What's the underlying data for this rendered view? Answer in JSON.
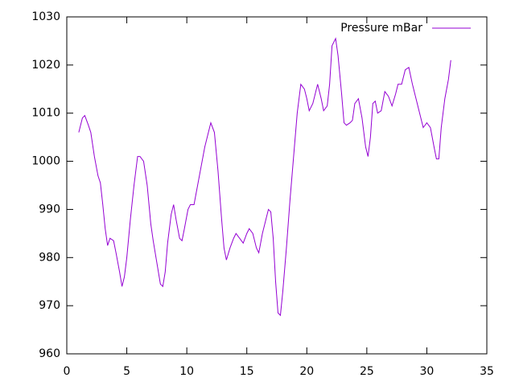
{
  "chart_data": {
    "type": "line",
    "xlim": [
      0,
      35
    ],
    "xticks": [
      0,
      5,
      10,
      15,
      20,
      25,
      30,
      35
    ],
    "ylim": [
      960,
      1030
    ],
    "yticks": [
      960,
      970,
      980,
      990,
      1000,
      1010,
      1020,
      1030
    ],
    "legend": "top-right",
    "x": [
      1.0,
      1.3,
      1.5,
      1.8,
      2.0,
      2.3,
      2.6,
      2.8,
      3.0,
      3.2,
      3.4,
      3.6,
      3.9,
      4.1,
      4.4,
      4.6,
      4.8,
      5.0,
      5.3,
      5.6,
      5.9,
      6.1,
      6.4,
      6.7,
      7.0,
      7.2,
      7.5,
      7.8,
      8.0,
      8.2,
      8.4,
      8.7,
      8.9,
      9.1,
      9.4,
      9.6,
      9.8,
      10.1,
      10.3,
      10.6,
      10.9,
      11.2,
      11.5,
      11.8,
      12.0,
      12.3,
      12.6,
      12.9,
      13.1,
      13.3,
      13.6,
      13.9,
      14.1,
      14.4,
      14.7,
      15.0,
      15.2,
      15.5,
      15.8,
      16.0,
      16.3,
      16.6,
      16.8,
      17.0,
      17.2,
      17.4,
      17.6,
      17.8,
      18.0,
      18.3,
      18.6,
      18.9,
      19.2,
      19.5,
      19.8,
      20.0,
      20.2,
      20.5,
      20.9,
      21.2,
      21.4,
      21.7,
      21.9,
      22.1,
      22.4,
      22.6,
      22.9,
      23.1,
      23.3,
      23.6,
      23.8,
      24.0,
      24.3,
      24.6,
      24.9,
      25.1,
      25.3,
      25.5,
      25.7,
      25.9,
      26.2,
      26.5,
      26.8,
      27.1,
      27.4,
      27.6,
      27.9,
      28.2,
      28.5,
      28.8,
      29.1,
      29.4,
      29.7,
      30.0,
      30.3,
      30.6,
      30.8,
      31.0,
      31.2,
      31.5,
      31.8,
      32.0
    ],
    "series": [
      {
        "name": "Pressure mBar",
        "color": "#9400d3",
        "values": [
          1006,
          1009,
          1009.5,
          1007.5,
          1006,
          1001,
          997,
          995.5,
          991,
          986,
          982.5,
          984,
          983.5,
          981,
          977,
          974,
          976,
          980,
          988,
          995,
          1001,
          1001,
          1000,
          995,
          987,
          983.5,
          979,
          974.5,
          974,
          977,
          983,
          989,
          991,
          988,
          984,
          983.5,
          986,
          990,
          991,
          991,
          995,
          999,
          1003,
          1006,
          1008,
          1006,
          998,
          988,
          982,
          979.5,
          982,
          984,
          985,
          984,
          983,
          985,
          986,
          985,
          982,
          981,
          985,
          988,
          990,
          989.5,
          984,
          975,
          968.5,
          968,
          973,
          982,
          992,
          1001,
          1010,
          1016,
          1015,
          1013,
          1010.5,
          1012,
          1016,
          1013,
          1010.5,
          1011.5,
          1016,
          1024,
          1025.5,
          1022,
          1014,
          1008,
          1007.5,
          1008,
          1008.5,
          1012,
          1013,
          1009,
          1003,
          1001,
          1005,
          1012,
          1012.5,
          1010,
          1010.5,
          1014.5,
          1013.5,
          1011.5,
          1014,
          1016,
          1016,
          1019,
          1019.5,
          1016,
          1013,
          1010,
          1007,
          1008,
          1007,
          1003,
          1000.5,
          1000.5,
          1007,
          1013,
          1017,
          1021
        ]
      }
    ]
  }
}
